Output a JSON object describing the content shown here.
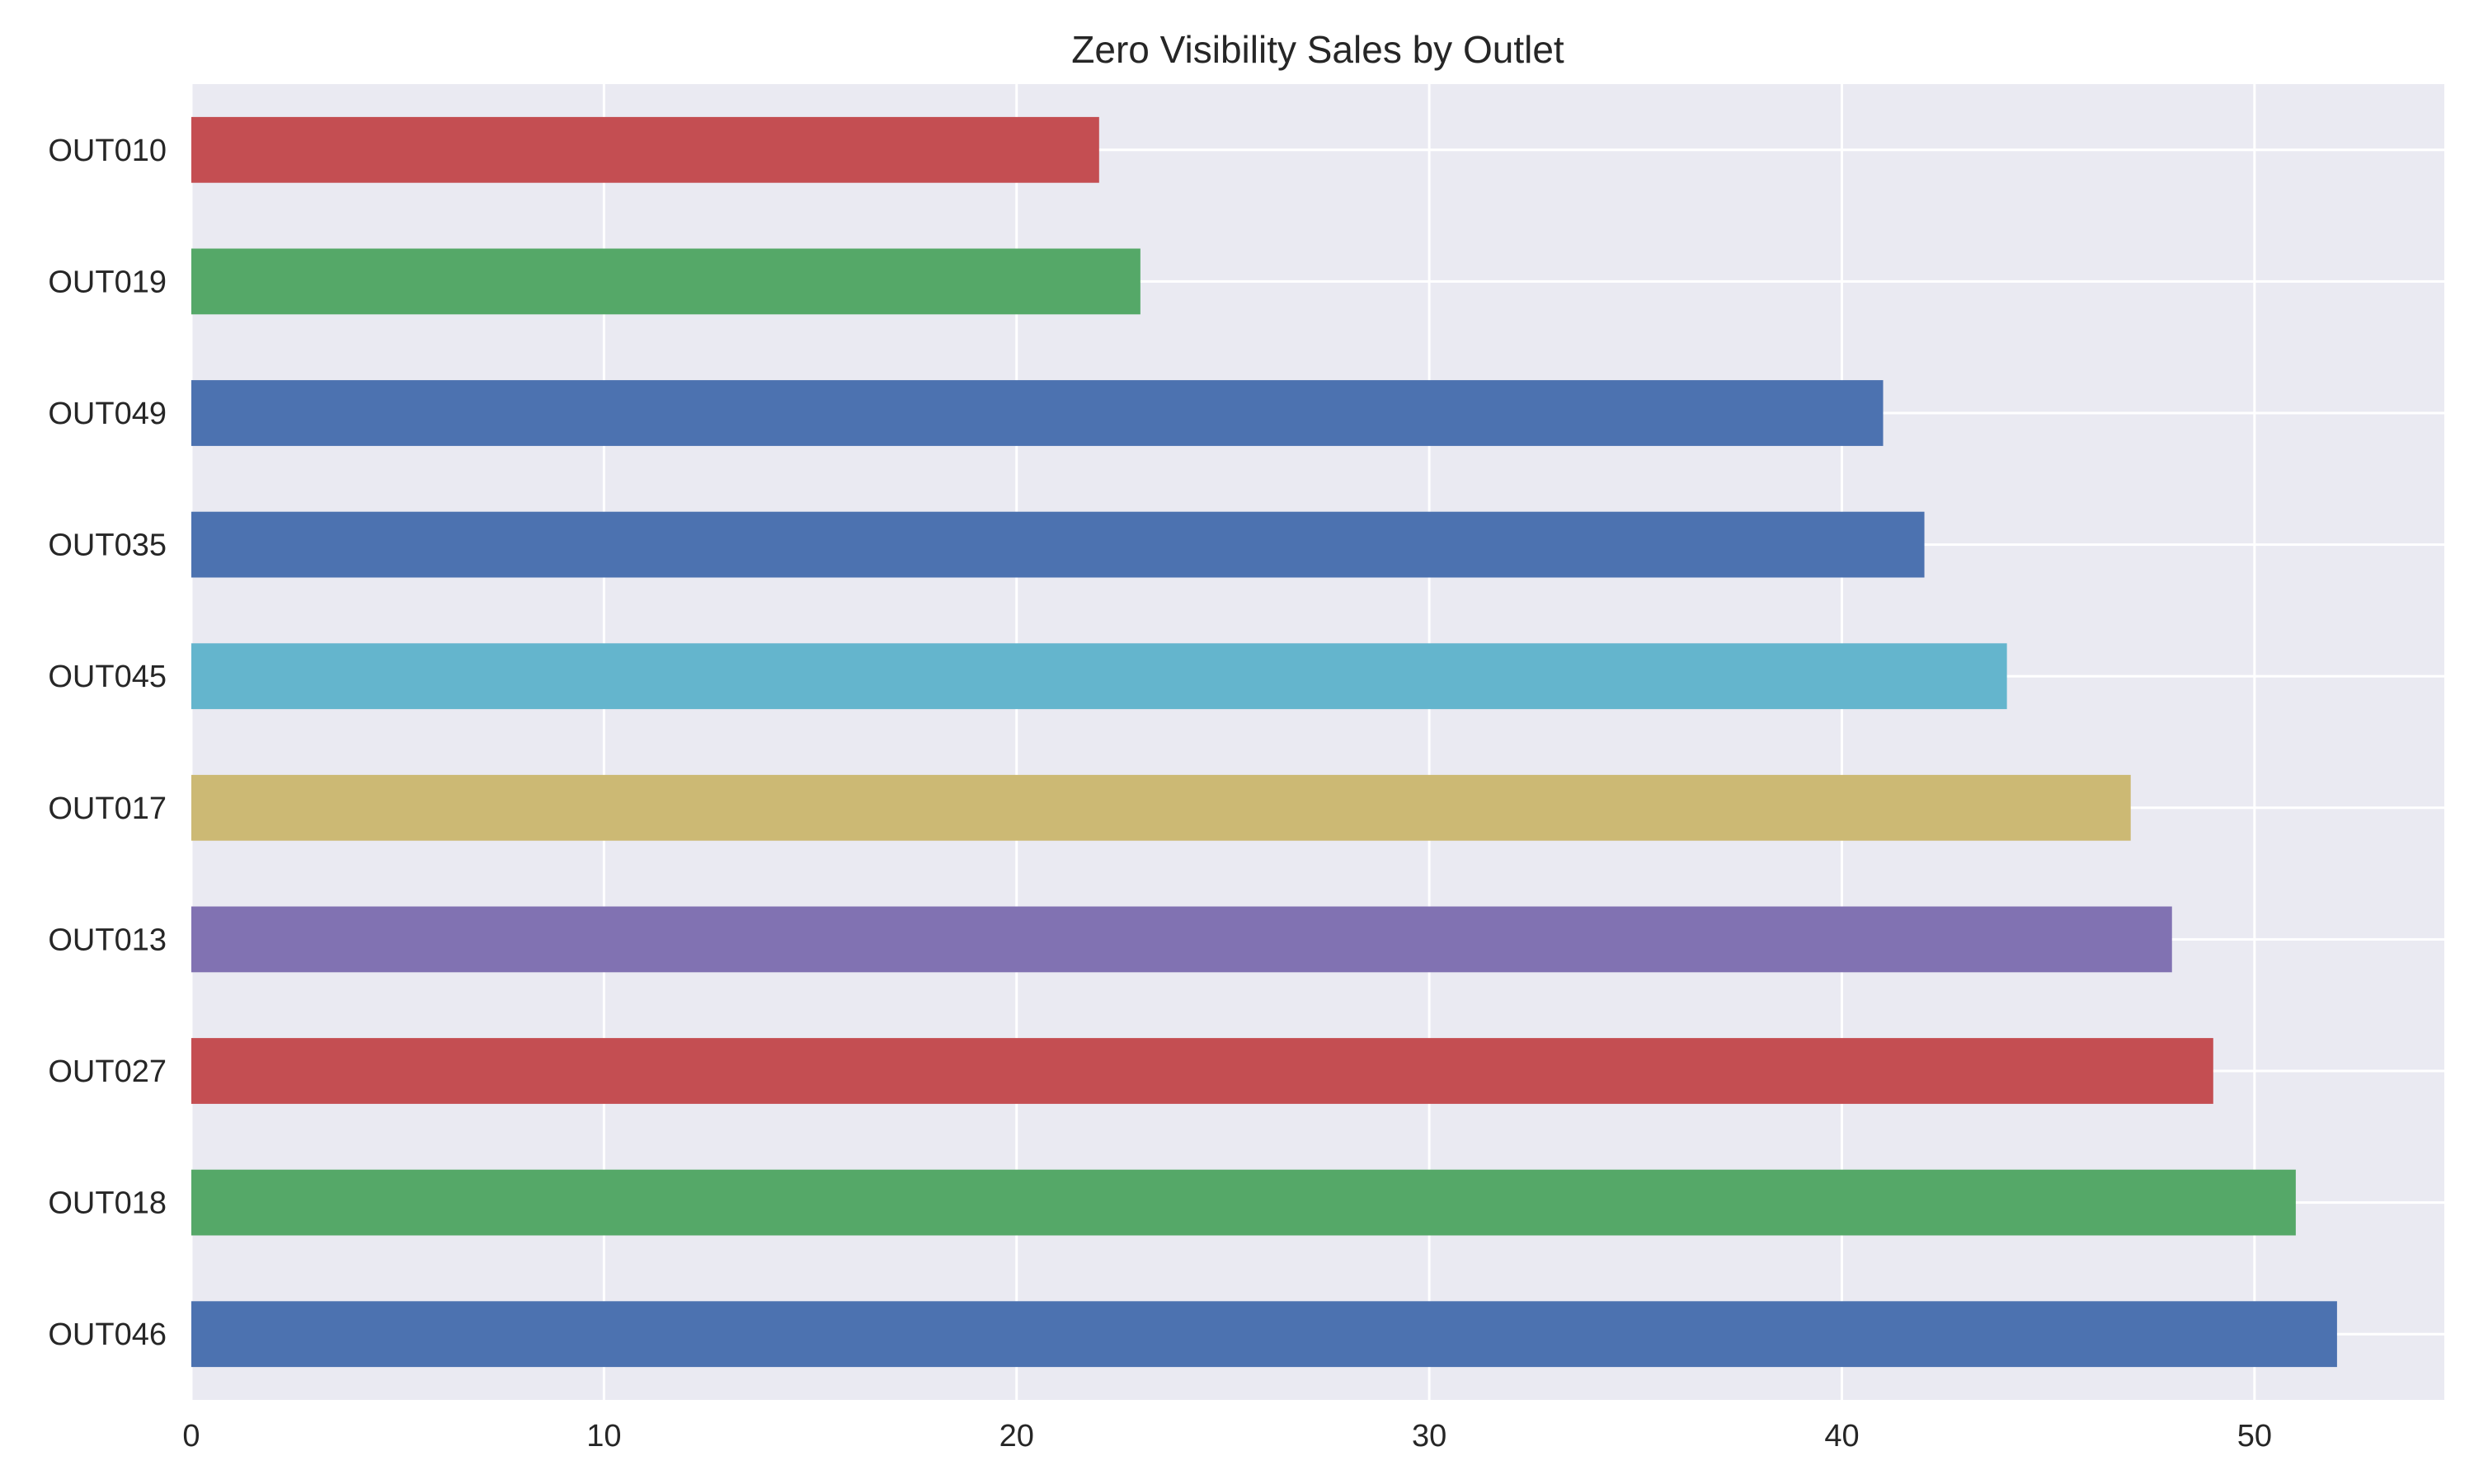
{
  "chart_data": {
    "type": "bar",
    "orientation": "horizontal",
    "title": "Zero Visibility Sales by Outlet",
    "xlabel": "",
    "ylabel": "",
    "categories": [
      "OUT010",
      "OUT019",
      "OUT049",
      "OUT035",
      "OUT045",
      "OUT017",
      "OUT013",
      "OUT027",
      "OUT018",
      "OUT046"
    ],
    "values": [
      22,
      23,
      41,
      42,
      44,
      47,
      48,
      49,
      51,
      52
    ],
    "bar_colors": [
      "#c44e52",
      "#55a868",
      "#4c72b0",
      "#4c72b0",
      "#64b5cd",
      "#ccb974",
      "#8172b2",
      "#c44e52",
      "#55a868",
      "#4c72b0"
    ],
    "xlim": [
      0,
      54.6
    ],
    "xticks": [
      0,
      10,
      20,
      30,
      40,
      50
    ],
    "xtick_labels": [
      "0",
      "10",
      "20",
      "30",
      "40",
      "50"
    ],
    "grid": true,
    "legend": "none",
    "plot_background": "#eaeaf2",
    "grid_color": "#ffffff"
  }
}
